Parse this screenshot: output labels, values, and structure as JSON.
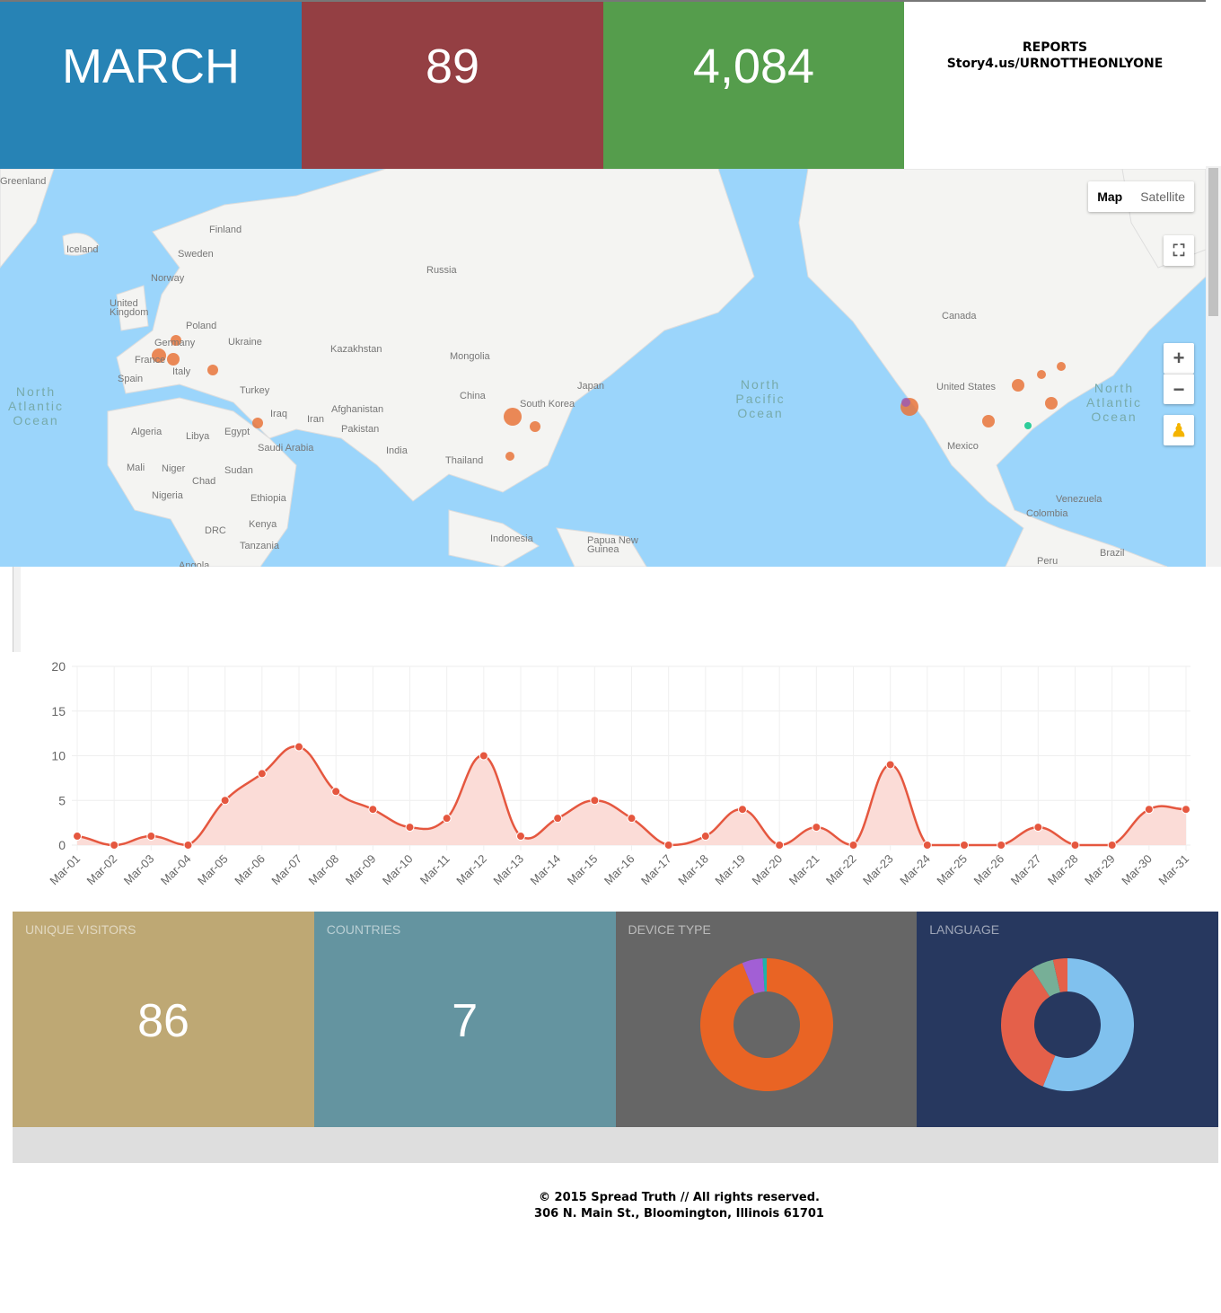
{
  "header": {
    "month": "MARCH",
    "total_visits": "89",
    "total_views": "4,084",
    "reports_title": "REPORTS",
    "reports_url": "Story4.us/URNOTTHEONLYONE",
    "colors": {
      "month": "#2783b5",
      "visits": "#943f43",
      "views": "#559d4c"
    }
  },
  "map": {
    "type_options": [
      "Map",
      "Satellite"
    ],
    "selected_type": "Map",
    "zoom_in": "+",
    "zoom_out": "−",
    "labels": [
      "Greenland",
      "Iceland",
      "Finland",
      "Sweden",
      "Norway",
      "United Kingdom",
      "Poland",
      "Germany",
      "France",
      "Ukraine",
      "Italy",
      "Spain",
      "Turkey",
      "Russia",
      "Kazakhstan",
      "Mongolia",
      "China",
      "South Korea",
      "Japan",
      "Iraq",
      "Iran",
      "Afghanistan",
      "Pakistan",
      "India",
      "Thailand",
      "Algeria",
      "Libya",
      "Egypt",
      "Saudi Arabia",
      "Mali",
      "Niger",
      "Chad",
      "Sudan",
      "Nigeria",
      "Ethiopia",
      "Kenya",
      "DRC",
      "Tanzania",
      "Angola",
      "Indonesia",
      "Papua New Guinea",
      "Canada",
      "United States",
      "Mexico",
      "Venezuela",
      "Colombia",
      "Brazil",
      "Peru"
    ],
    "oceans": [
      "North Atlantic Ocean",
      "North Pacific Ocean",
      "North Atlantic Ocean"
    ],
    "icons": [
      "fullscreen-icon",
      "pegman-icon"
    ]
  },
  "chart_data": {
    "type": "area",
    "x": [
      "Mar-01",
      "Mar-02",
      "Mar-03",
      "Mar-04",
      "Mar-05",
      "Mar-06",
      "Mar-07",
      "Mar-08",
      "Mar-09",
      "Mar-10",
      "Mar-11",
      "Mar-12",
      "Mar-13",
      "Mar-14",
      "Mar-15",
      "Mar-16",
      "Mar-17",
      "Mar-18",
      "Mar-19",
      "Mar-20",
      "Mar-21",
      "Mar-22",
      "Mar-23",
      "Mar-24",
      "Mar-25",
      "Mar-26",
      "Mar-27",
      "Mar-28",
      "Mar-29",
      "Mar-30",
      "Mar-31"
    ],
    "values": [
      1,
      0,
      1,
      0,
      5,
      8,
      11,
      6,
      4,
      2,
      3,
      10,
      1,
      3,
      5,
      3,
      0,
      1,
      4,
      0,
      2,
      0,
      9,
      0,
      0,
      0,
      2,
      0,
      0,
      4,
      4
    ],
    "ylim": [
      0,
      20
    ],
    "yticks": [
      "0",
      "5",
      "10",
      "15",
      "20"
    ],
    "grid": true,
    "line_color": "#e5573f",
    "fill_color": "#fbdcd7"
  },
  "stats": [
    {
      "label": "UNIQUE VISITORS",
      "value": "86",
      "color": "#bea874"
    },
    {
      "label": "COUNTRIES",
      "value": "7",
      "color": "#6494a0"
    },
    {
      "label": "DEVICE TYPE",
      "color": "#666666",
      "donut": [
        {
          "value": 94,
          "color": "#e96424"
        },
        {
          "value": 5,
          "color": "#a25fd5"
        },
        {
          "value": 1,
          "color": "#1fb3a8"
        }
      ]
    },
    {
      "label": "LANGUAGE",
      "color": "#27385f",
      "donut": [
        {
          "value": 56,
          "color": "#80c1ee"
        },
        {
          "value": 35,
          "color": "#e4604a"
        },
        {
          "value": 5.5,
          "color": "#77af97"
        },
        {
          "value": 3.5,
          "color": "#e4604a"
        }
      ]
    }
  ],
  "footer": {
    "copyright": "© 2015 Spread Truth // All rights reserved.",
    "address": "306 N. Main St., Bloomington, Illinois 61701"
  }
}
